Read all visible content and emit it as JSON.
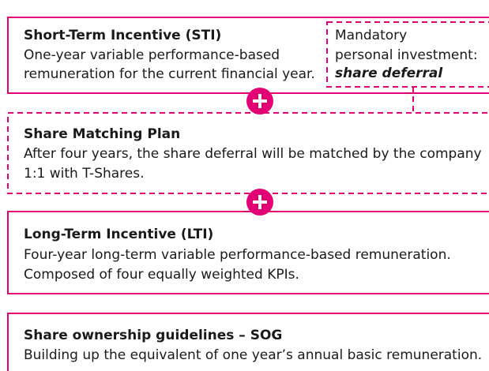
{
  "boxes": [
    {
      "title": "Short-Term Incentive (STI)",
      "lines": [
        "One-year variable performance-based",
        "remuneration for the current financial year."
      ]
    },
    {
      "title": "Share Matching Plan",
      "lines": [
        "After four years, the share deferral will be matched by the company",
        "1:1 with T-Shares."
      ]
    },
    {
      "title": "Long-Term Incentive (LTI)",
      "lines": [
        "Four-year long-term variable performance-based remuneration.",
        "Composed of four equally weighted KPIs."
      ]
    },
    {
      "title": "Share ownership guidelines – SOG",
      "lines": [
        "Building up the equivalent of one year’s annual basic remuneration."
      ]
    }
  ],
  "investment": {
    "lines": [
      "Mandatory",
      "personal investment:"
    ],
    "emphasis": "share deferral"
  }
}
